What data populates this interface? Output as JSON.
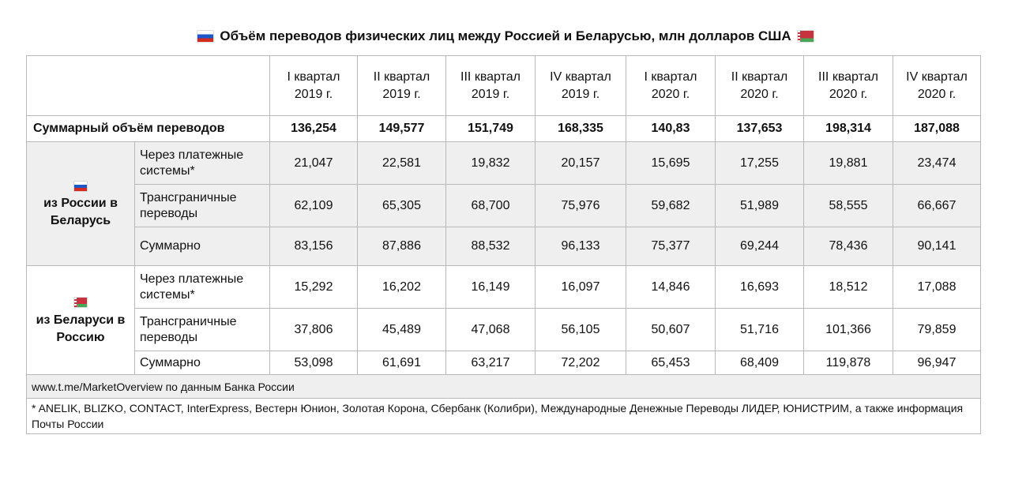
{
  "title": "Объём переводов физических лиц между Россией и Беларусью, млн долларов США",
  "flags": {
    "russia": "russia-flag",
    "belarus": "belarus-flag"
  },
  "colors": {
    "alt_row": "#efefef",
    "border": "#b9b9b9"
  },
  "chart_data": {
    "type": "table",
    "columns": [
      [
        "I квартал",
        "2019 г."
      ],
      [
        "II квартал",
        "2019 г."
      ],
      [
        "III квартал",
        "2019 г."
      ],
      [
        "IV квартал",
        "2019 г."
      ],
      [
        "I квартал",
        "2020 г."
      ],
      [
        "II квартал",
        "2020 г."
      ],
      [
        "III квартал",
        "2020 г."
      ],
      [
        "IV квартал",
        "2020 г."
      ]
    ],
    "total": {
      "label": "Суммарный объём переводов",
      "values": [
        "136,254",
        "149,577",
        "151,749",
        "168,335",
        "140,83",
        "137,653",
        "198,314",
        "187,088"
      ]
    },
    "groups": [
      {
        "label": [
          "из России в",
          "Беларусь"
        ],
        "rows": [
          {
            "label": [
              "Через платежные",
              "системы*"
            ],
            "values": [
              "21,047",
              "22,581",
              "19,832",
              "20,157",
              "15,695",
              "17,255",
              "19,881",
              "23,474"
            ]
          },
          {
            "label": [
              "Трансграничные",
              "переводы"
            ],
            "values": [
              "62,109",
              "65,305",
              "68,700",
              "75,976",
              "59,682",
              "51,989",
              "58,555",
              "66,667"
            ]
          },
          {
            "label": [
              "Суммарно"
            ],
            "values": [
              "83,156",
              "87,886",
              "88,532",
              "96,133",
              "75,377",
              "69,244",
              "78,436",
              "90,141"
            ]
          }
        ]
      },
      {
        "label": [
          "из Беларуси в",
          "Россию"
        ],
        "rows": [
          {
            "label": [
              "Через платежные",
              "системы*"
            ],
            "values": [
              "15,292",
              "16,202",
              "16,149",
              "16,097",
              "14,846",
              "16,693",
              "18,512",
              "17,088"
            ]
          },
          {
            "label": [
              "Трансграничные",
              "переводы"
            ],
            "values": [
              "37,806",
              "45,489",
              "47,068",
              "56,105",
              "50,607",
              "51,716",
              "101,366",
              "79,859"
            ]
          },
          {
            "label": [
              "Суммарно"
            ],
            "values": [
              "53,098",
              "61,691",
              "63,217",
              "72,202",
              "65,453",
              "68,409",
              "119,878",
              "96,947"
            ]
          }
        ]
      }
    ],
    "source": "www.t.me/MarketOverview по данным Банка России",
    "footnote": "* ANELIK, BLIZKO, CONTACT, InterExpress, Вестерн Юнион, Золотая Корона, Сбербанк (Колибри), Международные Денежные Переводы ЛИДЕР, ЮНИСТРИМ, а также информация Почты России"
  }
}
